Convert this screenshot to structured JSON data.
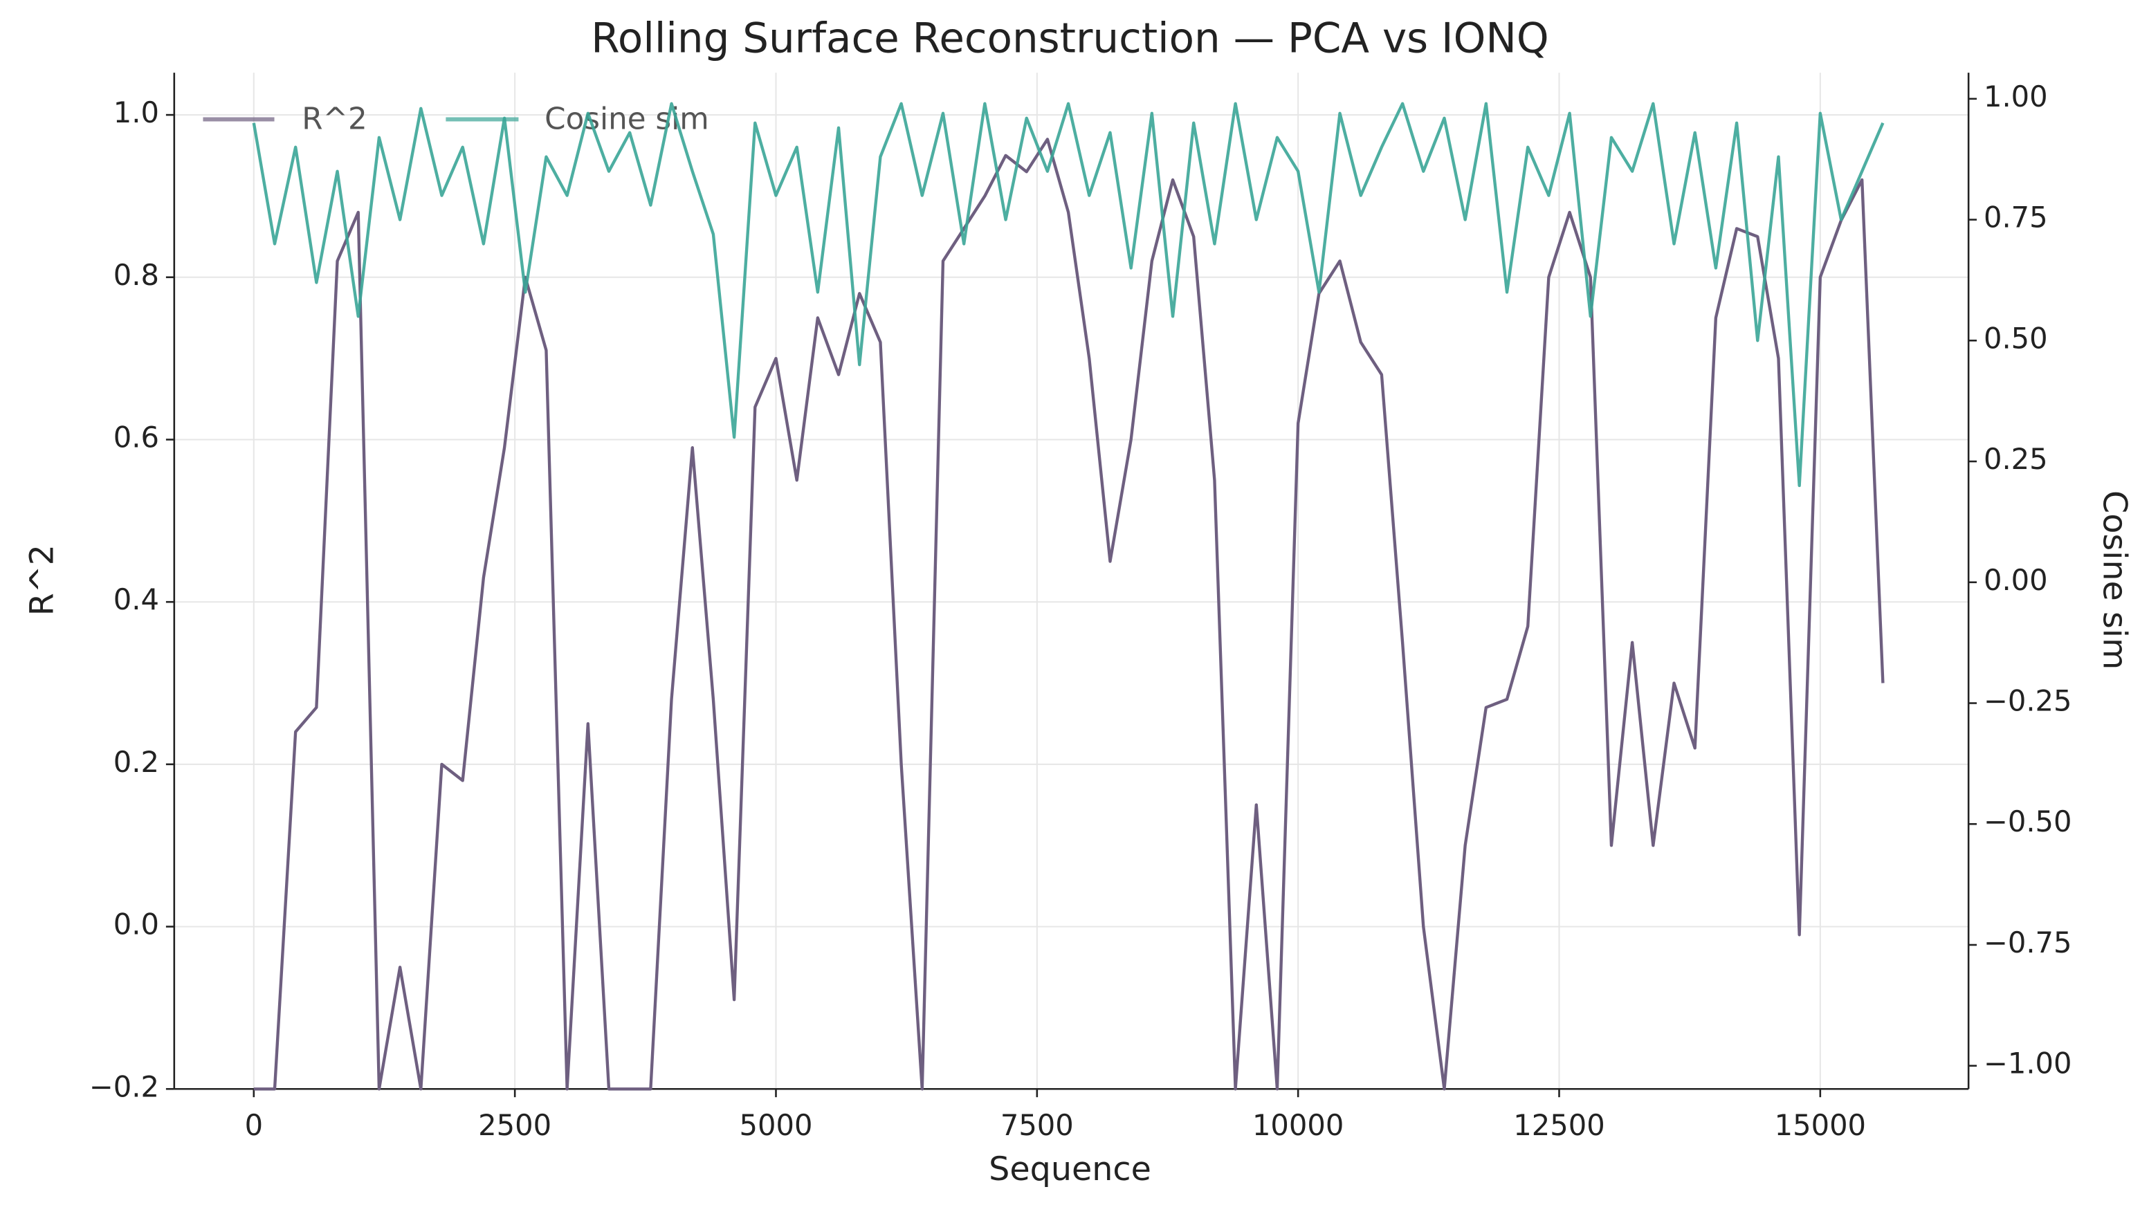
{
  "chart_data": {
    "type": "line",
    "title": "Rolling Surface Reconstruction — PCA vs IONQ",
    "xlabel": "Sequence",
    "ylabel": "R^2",
    "y2label": "Cosine sim",
    "x": [
      0,
      200,
      400,
      600,
      800,
      1000,
      1200,
      1400,
      1600,
      1800,
      2000,
      2200,
      2400,
      2600,
      2800,
      3000,
      3200,
      3400,
      3600,
      3800,
      4000,
      4200,
      4400,
      4600,
      4800,
      5000,
      5200,
      5400,
      5600,
      5800,
      6000,
      6200,
      6400,
      6600,
      6800,
      7000,
      7200,
      7400,
      7600,
      7800,
      8000,
      8200,
      8400,
      8600,
      8800,
      9000,
      9200,
      9400,
      9600,
      9800,
      10000,
      10200,
      10400,
      10600,
      10800,
      11000,
      11200,
      11400,
      11600,
      11800,
      12000,
      12200,
      12400,
      12600,
      12800,
      13000,
      13200,
      13400,
      13600,
      13800,
      14000,
      14200,
      14400,
      14600,
      14800,
      15000,
      15200,
      15400,
      15600
    ],
    "series": [
      {
        "name": "R^2",
        "color": "#6e5f80",
        "axis": "y",
        "values": [
          -0.2,
          -0.2,
          0.24,
          0.27,
          0.82,
          0.88,
          -0.2,
          -0.05,
          -0.2,
          0.2,
          0.18,
          0.43,
          0.59,
          0.8,
          0.71,
          -0.2,
          0.25,
          -0.2,
          -0.2,
          -0.2,
          0.28,
          0.59,
          0.28,
          -0.09,
          0.64,
          0.7,
          0.55,
          0.75,
          0.68,
          0.78,
          0.72,
          0.2,
          -0.2,
          0.82,
          0.86,
          0.9,
          0.95,
          0.93,
          0.97,
          0.88,
          0.7,
          0.45,
          0.6,
          0.82,
          0.92,
          0.85,
          0.55,
          -0.2,
          0.15,
          -0.2,
          0.62,
          0.78,
          0.82,
          0.72,
          0.68,
          0.35,
          0.0,
          -0.2,
          0.1,
          0.27,
          0.28,
          0.37,
          0.8,
          0.88,
          0.8,
          0.1,
          0.35,
          0.1,
          0.3,
          0.22,
          0.75,
          0.86,
          0.85,
          0.7,
          -0.01,
          0.8,
          0.87,
          0.92,
          0.3
        ]
      },
      {
        "name": "Cosine sim",
        "color": "#3aa597",
        "axis": "y2",
        "values": [
          0.95,
          0.7,
          0.9,
          0.62,
          0.85,
          0.55,
          0.92,
          0.75,
          0.98,
          0.8,
          0.9,
          0.7,
          0.96,
          0.6,
          0.88,
          0.8,
          0.97,
          0.85,
          0.93,
          0.78,
          0.99,
          0.85,
          0.72,
          0.3,
          0.95,
          0.8,
          0.9,
          0.6,
          0.94,
          0.45,
          0.88,
          0.99,
          0.8,
          0.97,
          0.7,
          0.99,
          0.75,
          0.96,
          0.85,
          0.99,
          0.8,
          0.93,
          0.65,
          0.97,
          0.55,
          0.95,
          0.7,
          0.99,
          0.75,
          0.92,
          0.85,
          0.6,
          0.97,
          0.8,
          0.9,
          0.99,
          0.85,
          0.96,
          0.75,
          0.99,
          0.6,
          0.9,
          0.8,
          0.97,
          0.55,
          0.92,
          0.85,
          0.99,
          0.7,
          0.93,
          0.65,
          0.95,
          0.5,
          0.88,
          0.2,
          0.97,
          0.75,
          0.85,
          0.95
        ]
      }
    ],
    "xlim": [
      -762,
      16420
    ],
    "ylim": [
      -0.2,
      1.052
    ],
    "y2lim": [
      -1.048,
      1.054
    ],
    "xticks": [
      0,
      2500,
      5000,
      7500,
      10000,
      12500,
      15000
    ],
    "yticks": [
      {
        "value": -0.2,
        "label": "−0.2"
      },
      {
        "value": 0,
        "label": "0.0"
      },
      0.2,
      0.4,
      0.6,
      0.8,
      {
        "value": 1.0,
        "label": "1.0"
      }
    ],
    "y2ticks": [
      {
        "value": -1,
        "label": "−1.00"
      },
      {
        "value": -0.75,
        "label": "−0.75"
      },
      {
        "value": -0.5,
        "label": "−0.50"
      },
      {
        "value": -0.25,
        "label": "−0.25"
      },
      {
        "value": 0,
        "label": "0.00"
      },
      {
        "value": 0.25,
        "label": "0.25"
      },
      {
        "value": 0.5,
        "label": "0.50"
      },
      {
        "value": 0.75,
        "label": "0.75"
      },
      {
        "value": 1,
        "label": "1.00"
      }
    ],
    "grid": true,
    "legend": "upper left"
  }
}
